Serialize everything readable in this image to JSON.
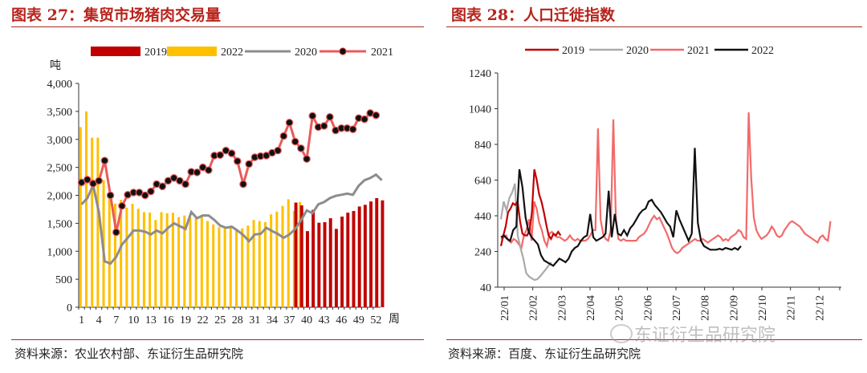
{
  "colors": {
    "c2019": "#c00000",
    "c2022_bar": "#ffc000",
    "c2020_left": "#8c8c8c",
    "c2021_left": "#ea5a5a",
    "c2020_right": "#aaaaaa",
    "c2021_right": "#f26a6a",
    "c2022_right": "#111111",
    "title": "#b8241c"
  },
  "left_panel": {
    "title": "图表 27：集贸市场猪肉交易量",
    "source": "资料来源：农业农村部、东证衍生品研究院"
  },
  "right_panel": {
    "title": "图表 28：人口迁徙指数",
    "source": "资料来源：百度、东证衍生品研究院"
  },
  "watermark": "东证衍生品研究院",
  "chart_data": [
    {
      "type": "bar+line",
      "title": "图表 27：集贸市场猪肉交易量",
      "ylabel": "吨",
      "xlabel": "周",
      "ylim": [
        0,
        4000
      ],
      "yticks": [
        0,
        500,
        1000,
        1500,
        2000,
        2500,
        3000,
        3500,
        4000
      ],
      "ytick_labels": [
        "0",
        "500",
        "1,000",
        "1,500",
        "2,000",
        "2,500",
        "3,000",
        "3,500",
        "4,000"
      ],
      "xticks": [
        1,
        4,
        7,
        10,
        13,
        16,
        19,
        22,
        25,
        28,
        31,
        34,
        37,
        40,
        43,
        46,
        49,
        52
      ],
      "legend": [
        "2019",
        "2022",
        "2020",
        "2021"
      ],
      "series": [
        {
          "name": "2022",
          "kind": "bar",
          "weeks_start": 1,
          "values": [
            3220,
            3500,
            3030,
            3030,
            2270,
            1950,
            1850,
            1920,
            1780,
            1850,
            1760,
            1700,
            1690,
            1560,
            1700,
            1680,
            1690,
            1610,
            1640,
            1600,
            1600,
            1650,
            1540,
            1480,
            1430,
            1420,
            1440,
            1400,
            1410,
            1460,
            1560,
            1540,
            1520,
            1660,
            1710,
            1810,
            1930,
            1720,
            1880
          ]
        },
        {
          "name": "2019",
          "kind": "bar",
          "weeks_start": 38,
          "values": [
            1870,
            1820,
            1360,
            1740,
            1510,
            1520,
            1590,
            1400,
            1620,
            1690,
            1720,
            1800,
            1830,
            1890,
            1950,
            1910
          ]
        },
        {
          "name": "2020",
          "kind": "line",
          "values": [
            1840,
            1950,
            2180,
            1700,
            820,
            780,
            900,
            1120,
            1240,
            1370,
            1370,
            1350,
            1300,
            1370,
            1320,
            1420,
            1500,
            1450,
            1400,
            1700,
            1590,
            1640,
            1640,
            1560,
            1460,
            1420,
            1440,
            1370,
            1290,
            1180,
            1300,
            1310,
            1420,
            1360,
            1310,
            1240,
            1300,
            1400,
            1550,
            1730,
            1680,
            1840,
            1880,
            1950,
            1990,
            2010,
            2030,
            2010,
            2170,
            2270,
            2310,
            2370,
            2270
          ]
        },
        {
          "name": "2021",
          "kind": "line",
          "values": [
            2230,
            2280,
            2210,
            2260,
            2620,
            2000,
            1340,
            1810,
            2010,
            2050,
            2050,
            2000,
            2070,
            2200,
            2160,
            2260,
            2310,
            2260,
            2200,
            2420,
            2410,
            2500,
            2450,
            2710,
            2720,
            2800,
            2750,
            2610,
            2200,
            2560,
            2680,
            2700,
            2710,
            2760,
            2800,
            3060,
            3300,
            2960,
            2840,
            2650,
            3420,
            3220,
            3240,
            3400,
            3160,
            3200,
            3200,
            3180,
            3380,
            3360,
            3470,
            3430
          ]
        }
      ]
    },
    {
      "type": "line",
      "title": "图表 28：人口迁徙指数",
      "ylim": [
        40,
        1240
      ],
      "yticks": [
        40,
        240,
        440,
        640,
        840,
        1040,
        1240
      ],
      "xtick_labels": [
        "22/01",
        "22/02",
        "22/03",
        "22/04",
        "22/05",
        "22/06",
        "22/07",
        "22/08",
        "22/09",
        "22/10",
        "22/11",
        "22/12"
      ],
      "legend": [
        "2019",
        "2020",
        "2021",
        "2022"
      ],
      "series": [
        {
          "name": "2019",
          "values": [
            270,
            330,
            380,
            460,
            480,
            510,
            500,
            520,
            410,
            340,
            330,
            330,
            360,
            460,
            700,
            640,
            560,
            520,
            460,
            390,
            330,
            310,
            340,
            330,
            350,
            330
          ]
        },
        {
          "name": "2020",
          "values": [
            420,
            520,
            470,
            540,
            570,
            620,
            330,
            260,
            200,
            120,
            100,
            90,
            80,
            85,
            100,
            120,
            140,
            160,
            180
          ]
        },
        {
          "name": "2021",
          "values": [
            310,
            320,
            330,
            300,
            290,
            310,
            300,
            280,
            260,
            330,
            360,
            420,
            300,
            520,
            480,
            400,
            360,
            300,
            270,
            340,
            350,
            330,
            320,
            320,
            310,
            300,
            310,
            330,
            310,
            300,
            310,
            300,
            300,
            300,
            310,
            330,
            360,
            360,
            930,
            420,
            340,
            310,
            300,
            360,
            980,
            420,
            310,
            300,
            310,
            300,
            300,
            300,
            300,
            300,
            320,
            330,
            340,
            360,
            390,
            420,
            440,
            420,
            430,
            400,
            370,
            340,
            300,
            260,
            240,
            230,
            240,
            260,
            270,
            280,
            290,
            300,
            310,
            300,
            300,
            310,
            300,
            290,
            300,
            310,
            320,
            330,
            320,
            300,
            310,
            300,
            320,
            330,
            340,
            360,
            350,
            320,
            310,
            1020,
            650,
            430,
            360,
            330,
            310,
            320,
            330,
            350,
            380,
            360,
            330,
            320,
            330,
            360,
            380,
            400,
            410,
            400,
            390,
            380,
            360,
            340,
            330,
            320,
            310,
            300,
            290,
            320,
            330,
            310,
            300,
            410
          ]
        },
        {
          "name": "2022",
          "values": [
            320,
            330,
            310,
            300,
            360,
            380,
            700,
            600,
            430,
            350,
            320,
            300,
            280,
            220,
            190,
            180,
            170,
            160,
            180,
            200,
            190,
            180,
            200,
            240,
            260,
            270,
            300,
            320,
            330,
            450,
            320,
            300,
            310,
            320,
            340,
            580,
            320,
            450,
            340,
            330,
            360,
            330,
            370,
            390,
            420,
            450,
            470,
            480,
            520,
            530,
            500,
            480,
            460,
            430,
            400,
            380,
            320,
            470,
            420,
            380,
            340,
            300,
            340,
            820,
            400,
            300,
            270,
            260,
            250,
            250,
            250,
            255,
            250,
            260,
            255,
            250,
            260,
            250,
            270
          ]
        }
      ]
    }
  ]
}
